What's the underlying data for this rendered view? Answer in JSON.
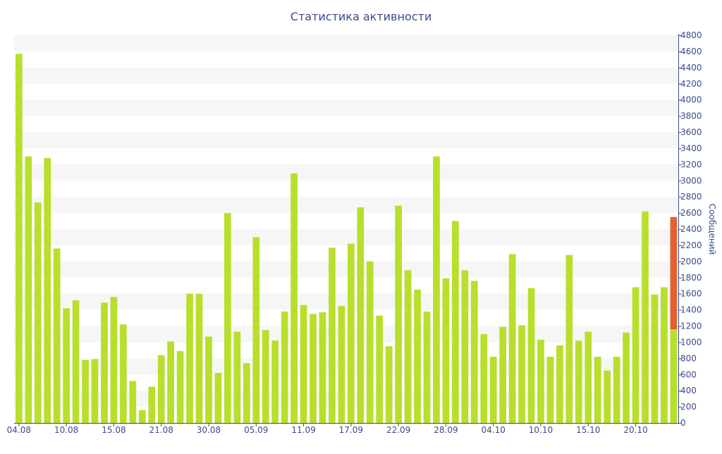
{
  "chart_data": {
    "type": "bar",
    "title": "Статистика активности",
    "ylabel": "Сообщений",
    "xlabel": "",
    "ylim": [
      0,
      4800
    ],
    "y_ticks": [
      0,
      200,
      400,
      600,
      800,
      1000,
      1200,
      1400,
      1600,
      1800,
      2000,
      2200,
      2400,
      2600,
      2800,
      3000,
      3200,
      3400,
      3600,
      3800,
      4000,
      4200,
      4400,
      4600,
      4800
    ],
    "x_tick_labels": [
      {
        "index": 0,
        "label": "04.08"
      },
      {
        "index": 5,
        "label": "10.08"
      },
      {
        "index": 10,
        "label": "15.08"
      },
      {
        "index": 15,
        "label": "21.08"
      },
      {
        "index": 20,
        "label": "30.08"
      },
      {
        "index": 25,
        "label": "05.09"
      },
      {
        "index": 30,
        "label": "11.09"
      },
      {
        "index": 35,
        "label": "17.09"
      },
      {
        "index": 40,
        "label": "22.09"
      },
      {
        "index": 45,
        "label": "28.09"
      },
      {
        "index": 50,
        "label": "04.10"
      },
      {
        "index": 55,
        "label": "10.10"
      },
      {
        "index": 60,
        "label": "15.10"
      },
      {
        "index": 65,
        "label": "20.10"
      }
    ],
    "values": [
      4570,
      3300,
      2730,
      3280,
      2160,
      1420,
      1520,
      780,
      790,
      1490,
      1560,
      1220,
      520,
      160,
      450,
      840,
      1010,
      890,
      1600,
      1600,
      1070,
      620,
      2600,
      1130,
      740,
      2300,
      1150,
      1020,
      1380,
      3090,
      1460,
      1350,
      1370,
      2170,
      1450,
      2220,
      2670,
      2000,
      1330,
      950,
      2690,
      1890,
      1650,
      1380,
      3300,
      1790,
      2500,
      1890,
      1760,
      1100,
      820,
      1190,
      2090,
      1210,
      1670,
      1030,
      820,
      960,
      2080,
      1020,
      1130,
      820,
      650,
      820,
      1120,
      1680,
      2620,
      1590,
      1680,
      1160
    ],
    "highlight_extra": {
      "index": 69,
      "value": 2550
    },
    "colors": {
      "bar": "#b8df2c",
      "highlight": "#e4602f",
      "text": "#3b4a8c",
      "band": "#f6f6f6",
      "axis": "#3b4a8c"
    },
    "grid": true
  }
}
